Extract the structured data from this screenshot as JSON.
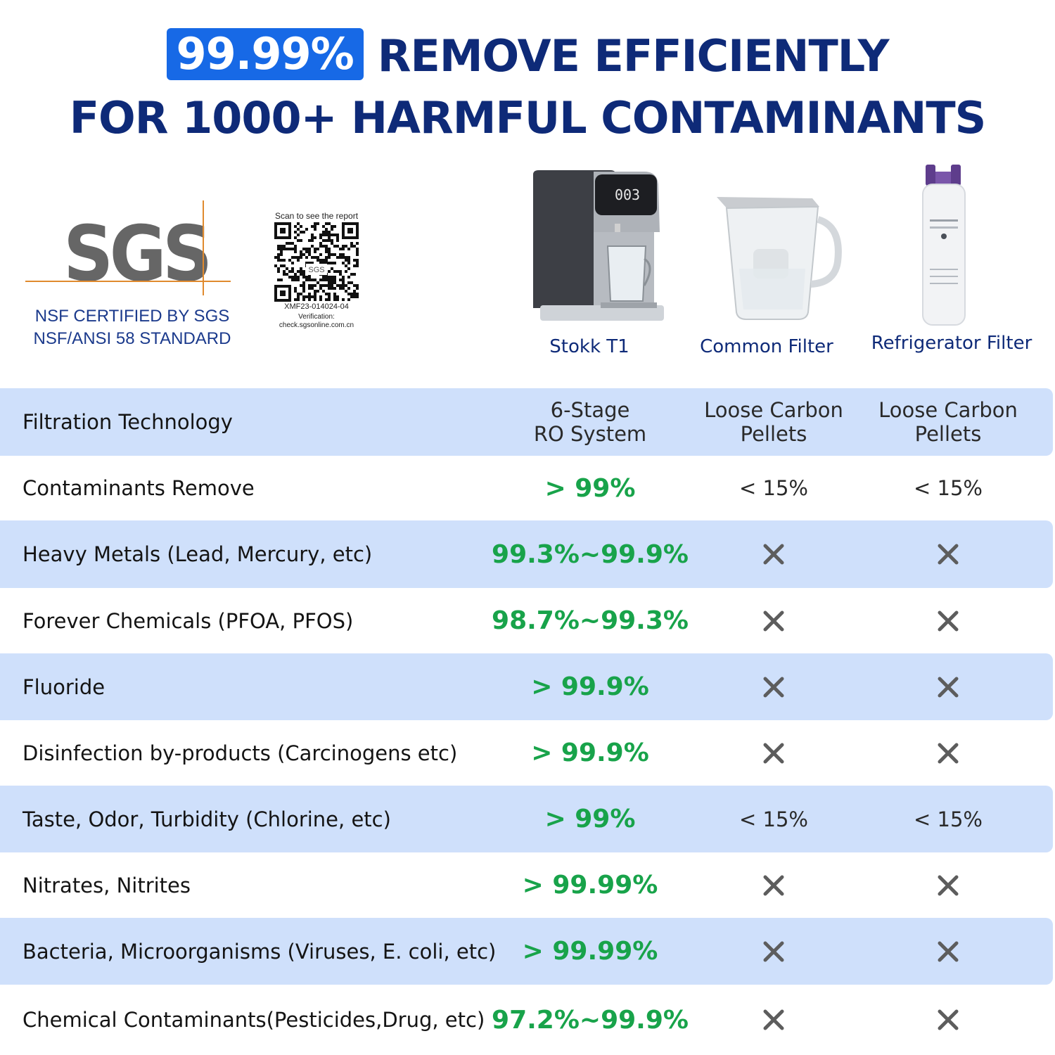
{
  "headline": {
    "badge": "99.99%",
    "line1": "REMOVE EFFICIENTLY",
    "line2": "FOR 1000+ HARMFUL CONTAMINANTS"
  },
  "certification": {
    "logo_text": "SGS",
    "line1": "NSF CERTIFIED BY SGS",
    "line2": "NSF/ANSI 58 STANDARD"
  },
  "qr": {
    "caption": "Scan to see the report",
    "inner_label": "SGS",
    "report_id": "XMF23-014024-04",
    "verification_label": "Verification:",
    "verification_url": "check.sgsonline.com.cn"
  },
  "products": {
    "stokk": {
      "label": "Stokk T1",
      "display_text": "003"
    },
    "common": {
      "label": "Common Filter"
    },
    "fridge": {
      "label": "Refrigerator Filter"
    }
  },
  "colors": {
    "navy": "#0e2a78",
    "badge_blue": "#1769e6",
    "row_shade": "#cfe0fb",
    "green": "#18a34a",
    "x_gray": "#5d5d5d"
  },
  "table": {
    "rows": [
      {
        "label": "Filtration Technology",
        "stokk": [
          "6-Stage",
          "RO System"
        ],
        "common": [
          "Loose Carbon",
          "Pellets"
        ],
        "fridge": [
          "Loose Carbon",
          "Pellets"
        ]
      },
      {
        "label": "Contaminants Remove",
        "stokk": "> 99%",
        "common": "< 15%",
        "fridge": "< 15%"
      },
      {
        "label": "Heavy Metals (Lead, Mercury, etc)",
        "stokk": "99.3%~99.9%",
        "common": "x",
        "fridge": "x"
      },
      {
        "label": "Forever Chemicals (PFOA, PFOS)",
        "stokk": "98.7%~99.3%",
        "common": "x",
        "fridge": "x"
      },
      {
        "label": "Fluoride",
        "stokk": "> 99.9%",
        "common": "x",
        "fridge": "x"
      },
      {
        "label": "Disinfection by-products (Carcinogens etc)",
        "stokk": "> 99.9%",
        "common": "x",
        "fridge": "x"
      },
      {
        "label": "Taste, Odor, Turbidity (Chlorine, etc)",
        "stokk": "> 99%",
        "common": "< 15%",
        "fridge": "< 15%"
      },
      {
        "label": "Nitrates, Nitrites",
        "stokk": "> 99.99%",
        "common": "x",
        "fridge": "x"
      },
      {
        "label": "Bacteria, Microorganisms (Viruses, E. coli, etc)",
        "stokk": "> 99.99%",
        "common": "x",
        "fridge": "x"
      },
      {
        "label": "Chemical Contaminants(Pesticides,Drug, etc)",
        "stokk": "97.2%~99.9%",
        "common": "x",
        "fridge": "x"
      }
    ]
  }
}
